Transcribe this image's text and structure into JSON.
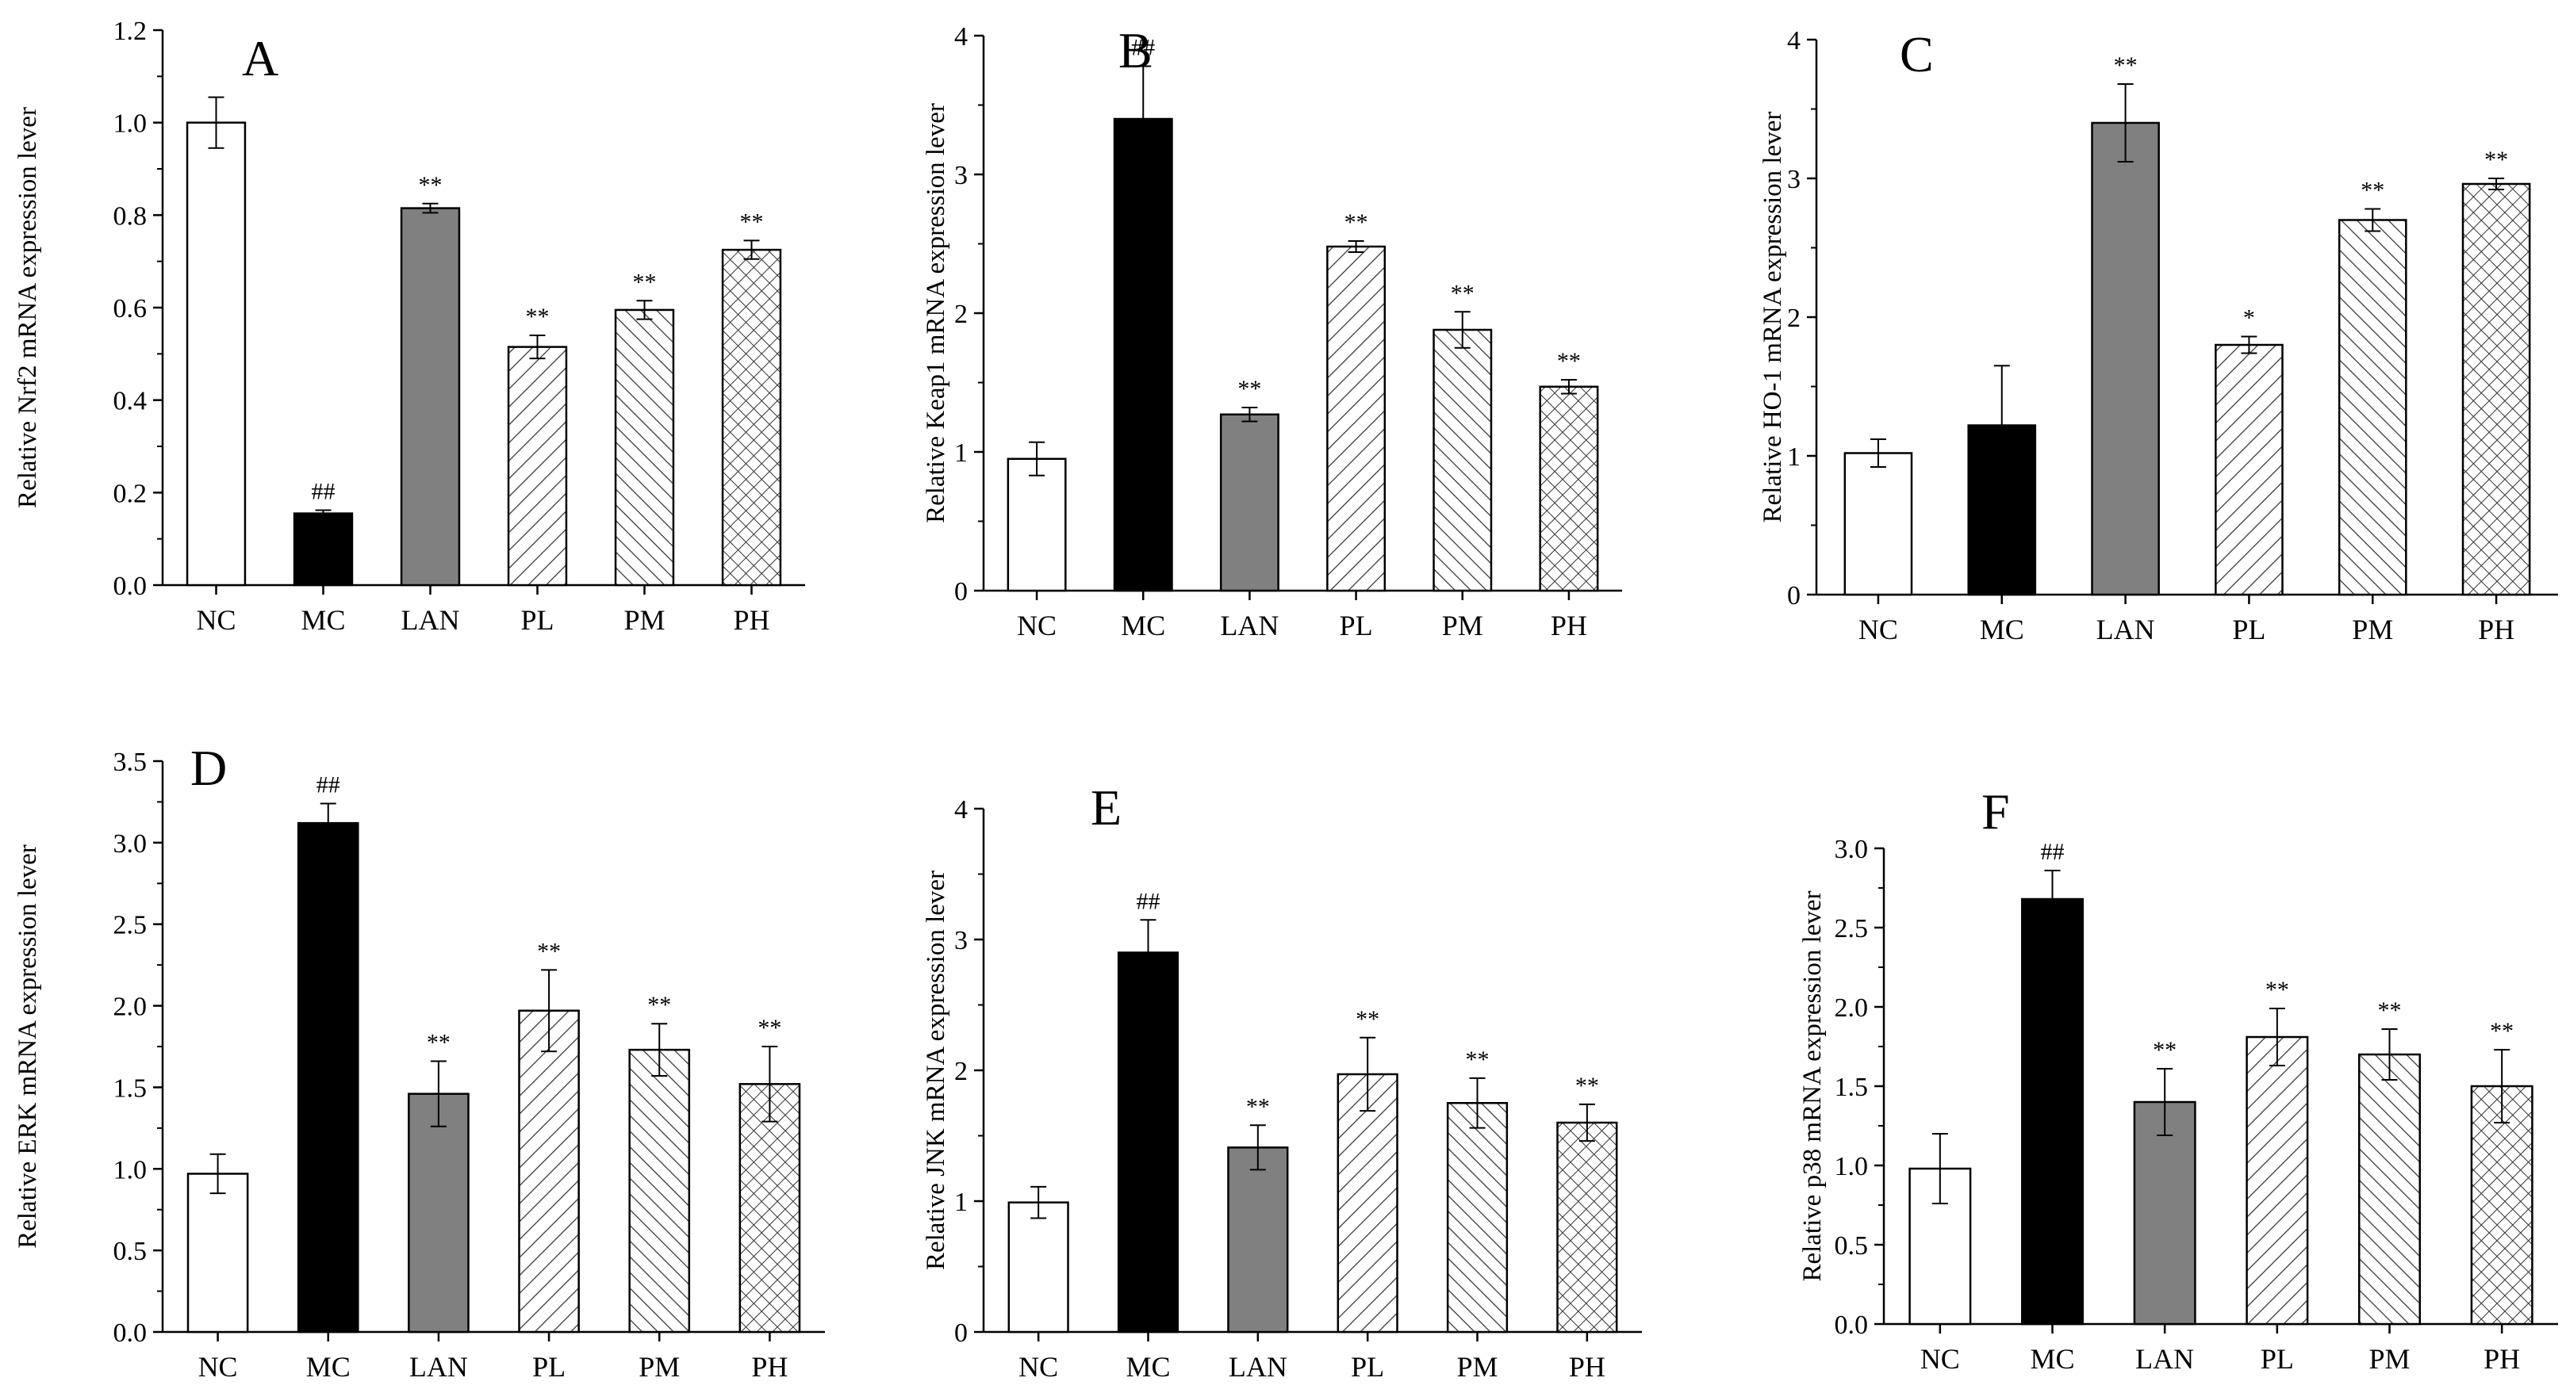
{
  "chart_data": [
    {
      "type": "bar",
      "panel": "A",
      "ylabel": "Relative Nrf2 mRNA expression lever",
      "categories": [
        "NC",
        "MC",
        "LAN",
        "PL",
        "PM",
        "PH"
      ],
      "values": [
        1.0,
        0.155,
        0.815,
        0.515,
        0.595,
        0.725
      ],
      "errors": [
        0.055,
        0.007,
        0.01,
        0.025,
        0.02,
        0.02
      ],
      "annotations": [
        "",
        "##",
        "**",
        "**",
        "**",
        "**"
      ],
      "ylim": [
        0,
        1.2
      ],
      "yticks": [
        "0.0",
        "0.2",
        "0.4",
        "0.6",
        "0.8",
        "1.0",
        "1.2"
      ]
    },
    {
      "type": "bar",
      "panel": "B",
      "ylabel": "Relative Keap1 mRNA expression lever",
      "categories": [
        "NC",
        "MC",
        "LAN",
        "PL",
        "PM",
        "PH"
      ],
      "values": [
        0.95,
        3.4,
        1.27,
        2.48,
        1.88,
        1.47
      ],
      "errors": [
        0.12,
        0.38,
        0.05,
        0.04,
        0.13,
        0.05
      ],
      "annotations": [
        "",
        "##",
        "**",
        "**",
        "**",
        "**"
      ],
      "ylim": [
        0,
        4
      ],
      "yticks": [
        "0",
        "1",
        "2",
        "3",
        "4"
      ]
    },
    {
      "type": "bar",
      "panel": "C",
      "ylabel": "Relative HO-1 mRNA expression lever",
      "categories": [
        "NC",
        "MC",
        "LAN",
        "PL",
        "PM",
        "PH"
      ],
      "values": [
        1.02,
        1.22,
        3.4,
        1.8,
        2.7,
        2.96
      ],
      "errors": [
        0.1,
        0.43,
        0.28,
        0.06,
        0.08,
        0.04
      ],
      "annotations": [
        "",
        "",
        "**",
        "*",
        "**",
        "**"
      ],
      "ylim": [
        0,
        4
      ],
      "yticks": [
        "0",
        "1",
        "2",
        "3",
        "4"
      ]
    },
    {
      "type": "bar",
      "panel": "D",
      "ylabel": "Relative ERK mRNA expression lever",
      "categories": [
        "NC",
        "MC",
        "LAN",
        "PL",
        "PM",
        "PH"
      ],
      "values": [
        0.97,
        3.12,
        1.46,
        1.97,
        1.73,
        1.52
      ],
      "errors": [
        0.12,
        0.12,
        0.2,
        0.25,
        0.16,
        0.23
      ],
      "annotations": [
        "",
        "##",
        "**",
        "**",
        "**",
        "**"
      ],
      "ylim": [
        0,
        3.5
      ],
      "yticks": [
        "0.0",
        "0.5",
        "1.0",
        "1.5",
        "2.0",
        "2.5",
        "3.0",
        "3.5"
      ]
    },
    {
      "type": "bar",
      "panel": "E",
      "ylabel": "Relative JNK mRNA expression lever",
      "categories": [
        "NC",
        "MC",
        "LAN",
        "PL",
        "PM",
        "PH"
      ],
      "values": [
        0.99,
        2.9,
        1.41,
        1.97,
        1.75,
        1.6
      ],
      "errors": [
        0.12,
        0.25,
        0.17,
        0.28,
        0.19,
        0.14
      ],
      "annotations": [
        "",
        "##",
        "**",
        "**",
        "**",
        "**"
      ],
      "ylim": [
        0,
        4
      ],
      "yticks": [
        "0",
        "1",
        "2",
        "3",
        "4"
      ]
    },
    {
      "type": "bar",
      "panel": "F",
      "ylabel": "Relative p38 mRNA expression lever",
      "categories": [
        "NC",
        "MC",
        "LAN",
        "PL",
        "PM",
        "PH"
      ],
      "values": [
        0.98,
        2.68,
        1.4,
        1.81,
        1.7,
        1.5
      ],
      "errors": [
        0.22,
        0.18,
        0.21,
        0.18,
        0.16,
        0.23
      ],
      "annotations": [
        "",
        "##",
        "**",
        "**",
        "**",
        "**"
      ],
      "ylim": [
        0,
        3.0
      ],
      "yticks": [
        "0.0",
        "0.5",
        "1.0",
        "1.5",
        "2.0",
        "2.5",
        "3.0"
      ]
    }
  ],
  "bar_styles": [
    {
      "group": "NC",
      "fill": "#ffffff",
      "pattern": "none"
    },
    {
      "group": "MC",
      "fill": "#000000",
      "pattern": "none"
    },
    {
      "group": "LAN",
      "fill": "#808080",
      "pattern": "none"
    },
    {
      "group": "PL",
      "fill": "#ffffff",
      "pattern": "diag-right"
    },
    {
      "group": "PM",
      "fill": "#ffffff",
      "pattern": "diag-left"
    },
    {
      "group": "PH",
      "fill": "#ffffff",
      "pattern": "crosshatch"
    }
  ]
}
